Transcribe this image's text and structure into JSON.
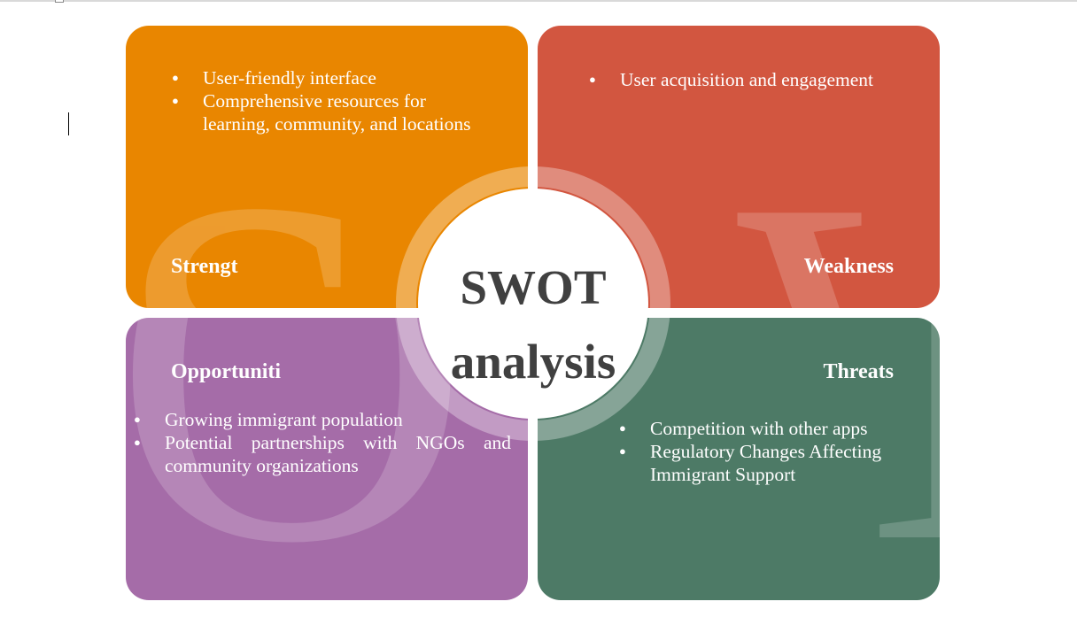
{
  "title": "SWOT analysis",
  "center": {
    "line1": "SWOT",
    "line2": "analysis"
  },
  "strength": {
    "letter": "S",
    "title": "Strengt",
    "color": "#e98600",
    "items": [
      "User-friendly interface",
      "Comprehensive resources for learning, community, and locations"
    ]
  },
  "weakness": {
    "letter": "W",
    "title": "Weakness",
    "color": "#d25640",
    "items": [
      "User acquisition and engagement"
    ]
  },
  "opportunities": {
    "letter": "O",
    "title": "Opportuniti",
    "color": "#a56ca8",
    "items": [
      "Growing immigrant population",
      "Potential partnerships with NGOs and community organizations"
    ]
  },
  "threats": {
    "letter": "T",
    "title": "Threats",
    "color": "#4d7a66",
    "items": [
      "Competition with other apps",
      "Regulatory Changes Affecting Immigrant Support"
    ]
  }
}
